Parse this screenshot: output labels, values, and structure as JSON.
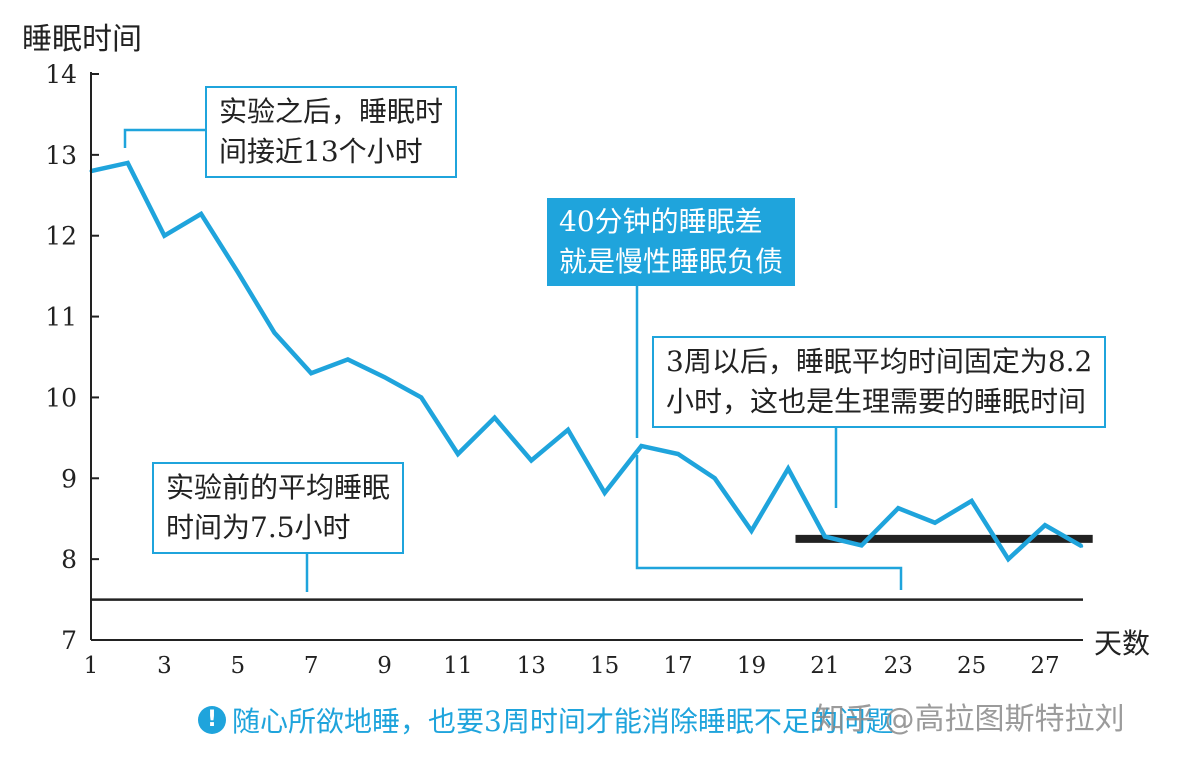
{
  "chart_data": {
    "type": "line",
    "ylabel": "睡眠时间",
    "xlabel": "天数",
    "xlim": [
      1,
      28
    ],
    "ylim": [
      7,
      14
    ],
    "x_ticks": [
      1,
      3,
      5,
      7,
      9,
      11,
      13,
      15,
      17,
      19,
      21,
      23,
      25,
      27
    ],
    "y_ticks": [
      7,
      8,
      9,
      10,
      11,
      12,
      13,
      14
    ],
    "series": [
      {
        "color": "#1fa4dc",
        "x": [
          1,
          2,
          3,
          4,
          5,
          6,
          7,
          8,
          9,
          10,
          11,
          12,
          13,
          14,
          15,
          16,
          17,
          18,
          19,
          20,
          21,
          22,
          23,
          24,
          25,
          26,
          27,
          28
        ],
        "values": [
          12.8,
          12.9,
          12.0,
          12.27,
          11.55,
          10.8,
          10.3,
          10.47,
          10.25,
          10.0,
          9.3,
          9.75,
          9.22,
          9.6,
          8.82,
          9.4,
          9.3,
          9.0,
          8.35,
          9.12,
          8.28,
          8.17,
          8.63,
          8.45,
          8.72,
          8.0,
          8.42,
          8.16
        ]
      }
    ],
    "reference_lines": [
      {
        "y": 7.5,
        "x_range": [
          1,
          28
        ],
        "color": "#222222"
      },
      {
        "y": 8.25,
        "x_range": [
          20.2,
          28.3
        ],
        "color": "#222222"
      }
    ],
    "annotations": [
      {
        "lines": [
          "实验之后，睡眠时",
          "间接近13个小时"
        ],
        "filled": false
      },
      {
        "lines": [
          "40分钟的睡眠差",
          "就是慢性睡眠负债"
        ],
        "filled": true
      },
      {
        "lines": [
          "3周以后，睡眠平均时间固定为8.2",
          "小时，这也是生理需要的睡眠时间"
        ],
        "filled": false
      },
      {
        "lines": [
          "实验前的平均睡眠",
          "时间为7.5小时"
        ],
        "filled": false
      }
    ]
  },
  "caption": "随心所欲地睡，也要3周时间才能消除睡眠不足的问题",
  "caption_icon": "exclamation-icon",
  "watermark": "知乎 @高拉图斯特拉刘",
  "colors": {
    "accent": "#1fa4dc",
    "axis": "#222222"
  }
}
